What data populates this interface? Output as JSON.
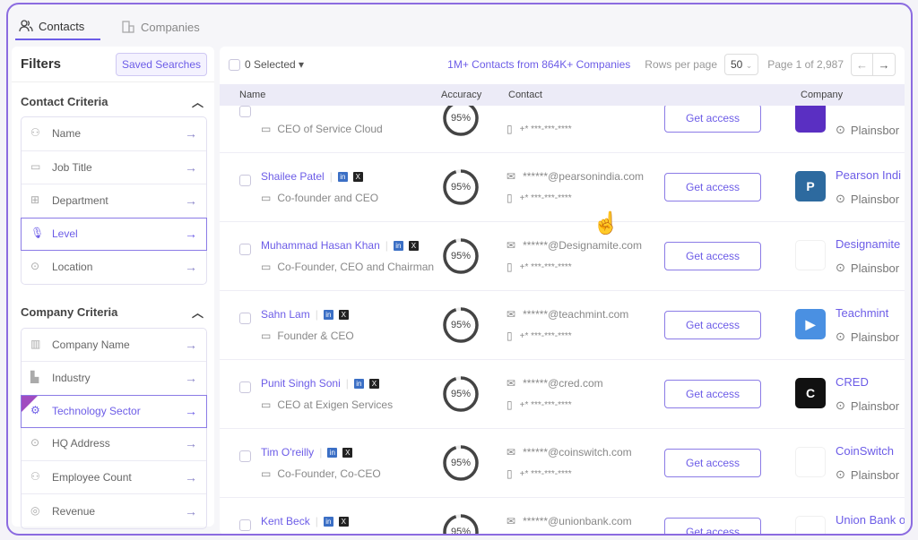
{
  "tabs": [
    {
      "label": "Contacts",
      "icon": "users-icon",
      "active": true
    },
    {
      "label": "Companies",
      "icon": "building-icon",
      "active": false
    }
  ],
  "sidebar": {
    "title": "Filters",
    "saved_searches": "Saved Searches",
    "contact_criteria": {
      "title": "Contact Criteria",
      "items": [
        {
          "label": "Name",
          "icon": "user-icon"
        },
        {
          "label": "Job Title",
          "icon": "briefcase-icon"
        },
        {
          "label": "Department",
          "icon": "org-icon"
        },
        {
          "label": "Level",
          "icon": "mic-icon",
          "selected": true
        },
        {
          "label": "Location",
          "icon": "pin-icon"
        }
      ]
    },
    "company_criteria": {
      "title": "Company Criteria",
      "items": [
        {
          "label": "Company Name",
          "icon": "building-icon"
        },
        {
          "label": "Industry",
          "icon": "factory-icon"
        },
        {
          "label": "Technology Sector",
          "icon": "gear-icon",
          "selected": true
        },
        {
          "label": "HQ Address",
          "icon": "pin-icon"
        },
        {
          "label": "Employee Count",
          "icon": "users-icon"
        },
        {
          "label": "Revenue",
          "icon": "chart-icon"
        }
      ]
    }
  },
  "toolbar": {
    "selected": "0 Selected",
    "count": "1M+ Contacts from 864K+ Companies",
    "rows_label": "Rows per page",
    "rows_value": "50",
    "page": "Page 1 of 2,987",
    "prev": "←",
    "next": "→"
  },
  "table": {
    "headers": [
      "Name",
      "Accuracy",
      "Contact",
      "Company"
    ],
    "access_label": "Get access",
    "rows": [
      {
        "name": "",
        "title": "CEO of Service Cloud",
        "accuracy": "95%",
        "email": "",
        "phone": "+* ***-***-****",
        "company": "",
        "location": "Plainsbor",
        "logo_color": "#5a2fc2",
        "logo_text": ""
      },
      {
        "name": "Shailee Patel",
        "title": "Co-founder and CEO",
        "accuracy": "95%",
        "email": "******@pearsonindia.com",
        "phone": "+* ***-***-****",
        "company": "Pearson Indi",
        "location": "Plainsbor",
        "logo_color": "#2d6a9f",
        "logo_text": "P"
      },
      {
        "name": "Muhammad Hasan Khan",
        "title": "Co-Founder, CEO and Chairman",
        "accuracy": "95%",
        "email": "******@Designamite.com",
        "phone": "+* ***-***-****",
        "company": "Designamite",
        "location": "Plainsbor",
        "logo_color": "#ffffff",
        "logo_text": ""
      },
      {
        "name": "Sahn Lam",
        "title": "Founder & CEO",
        "accuracy": "95%",
        "email": "******@teachmint.com",
        "phone": "+* ***-***-****",
        "company": "Teachmint",
        "location": "Plainsbor",
        "logo_color": "#4a90e2",
        "logo_text": "▶"
      },
      {
        "name": "Punit Singh Soni",
        "title": "CEO at Exigen Services",
        "accuracy": "95%",
        "email": "******@cred.com",
        "phone": "+* ***-***-****",
        "company": "CRED",
        "location": "Plainsbor",
        "logo_color": "#111111",
        "logo_text": "C"
      },
      {
        "name": "Tim O'reilly",
        "title": "Co-Founder, Co-CEO",
        "accuracy": "95%",
        "email": "******@coinswitch.com",
        "phone": "+* ***-***-****",
        "company": "CoinSwitch",
        "location": "Plainsbor",
        "logo_color": "#ffffff",
        "logo_text": ""
      },
      {
        "name": "Kent Beck",
        "title": "",
        "accuracy": "95%",
        "email": "******@unionbank.com",
        "phone": "",
        "company": "Union Bank o",
        "location": "",
        "logo_color": "#ffffff",
        "logo_text": ""
      }
    ]
  },
  "colors": {
    "accent": "#6c5ce7",
    "frame": "#8b6be0"
  }
}
